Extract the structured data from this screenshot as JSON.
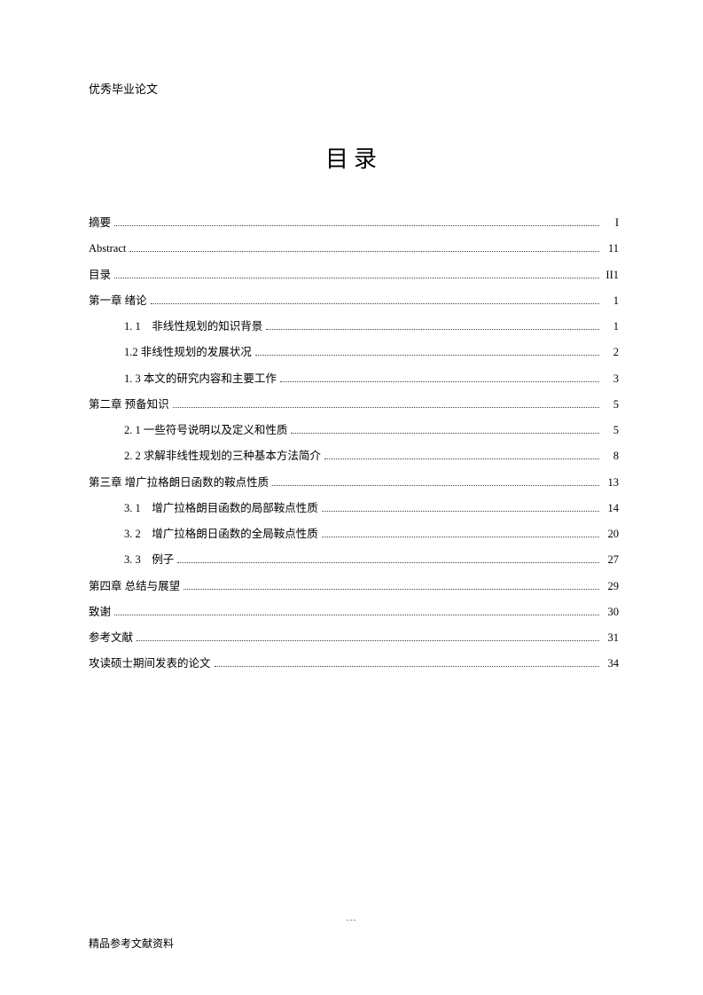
{
  "header": "优秀毕业论文",
  "title": "目录",
  "footer": "精品参考文献资料",
  "footer_marks": "---",
  "entries": [
    {
      "label": "摘要",
      "page": "I",
      "level": 0
    },
    {
      "label": "Abstract",
      "page": "11",
      "level": 0
    },
    {
      "label": "目录",
      "page": "II1",
      "level": 0
    },
    {
      "label": "第一章 绪论",
      "page": "1",
      "level": 0
    },
    {
      "label": "1. 1　非线性规划的知识背景",
      "page": "1",
      "level": 1
    },
    {
      "label": "1.2 非线性规划的发展状况",
      "page": "2",
      "level": 1
    },
    {
      "label": "1. 3 本文的研究内容和主要工作",
      "page": "3",
      "level": 1
    },
    {
      "label": "第二章 预备知识",
      "page": "5",
      "level": 0
    },
    {
      "label": "2. 1 一些符号说明以及定义和性质",
      "page": "5",
      "level": 1
    },
    {
      "label": "2. 2 求解非线性规划的三种基本方法简介",
      "page": "8",
      "level": 1
    },
    {
      "label": "第三章 增广拉格朗日函数的鞍点性质",
      "page": "13",
      "level": 0
    },
    {
      "label": "3. 1　增广拉格朗目函数的局部鞍点性质",
      "page": "14",
      "level": 1
    },
    {
      "label": "3.  2　增广拉格朗日函数的全局鞍点性质",
      "page": "20",
      "level": 1
    },
    {
      "label": "3. 3　例子",
      "page": "27",
      "level": 1
    },
    {
      "label": "第四章 总结与展望",
      "page": "29",
      "level": 0
    },
    {
      "label": "致谢",
      "page": "30",
      "level": 0
    },
    {
      "label": "参考文献",
      "page": "31",
      "level": 0
    },
    {
      "label": "攻读硕士期间发表的论文",
      "page": "34",
      "level": 0
    }
  ]
}
